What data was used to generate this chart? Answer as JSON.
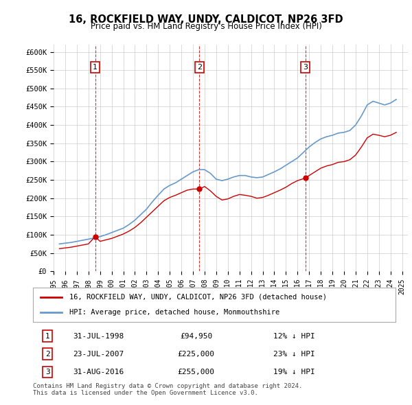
{
  "title": "16, ROCKFIELD WAY, UNDY, CALDICOT, NP26 3FD",
  "subtitle": "Price paid vs. HM Land Registry's House Price Index (HPI)",
  "legend_line1": "16, ROCKFIELD WAY, UNDY, CALDICOT, NP26 3FD (detached house)",
  "legend_line2": "HPI: Average price, detached house, Monmouthshire",
  "copyright": "Contains HM Land Registry data © Crown copyright and database right 2024.\nThis data is licensed under the Open Government Licence v3.0.",
  "purchases": [
    {
      "num": 1,
      "date": "31-JUL-1998",
      "price": 94950,
      "pct": "12%",
      "dir": "↓",
      "x_year": 1998.58
    },
    {
      "num": 2,
      "date": "23-JUL-2007",
      "price": 225000,
      "pct": "23%",
      "dir": "↓",
      "x_year": 2007.56
    },
    {
      "num": 3,
      "date": "31-AUG-2016",
      "price": 255000,
      "pct": "19%",
      "dir": "↓",
      "x_year": 2016.67
    }
  ],
  "ylim": [
    0,
    620000
  ],
  "xlim_start": 1995.0,
  "xlim_end": 2025.5,
  "yticks": [
    0,
    50000,
    100000,
    150000,
    200000,
    250000,
    300000,
    350000,
    400000,
    450000,
    500000,
    550000,
    600000
  ],
  "ytick_labels": [
    "£0",
    "£50K",
    "£100K",
    "£150K",
    "£200K",
    "£250K",
    "£300K",
    "£350K",
    "£400K",
    "£450K",
    "£500K",
    "£550K",
    "£600K"
  ],
  "xticks": [
    1995,
    1996,
    1997,
    1998,
    1999,
    2000,
    2001,
    2002,
    2003,
    2004,
    2005,
    2006,
    2007,
    2008,
    2009,
    2010,
    2011,
    2012,
    2013,
    2014,
    2015,
    2016,
    2017,
    2018,
    2019,
    2020,
    2021,
    2022,
    2023,
    2024,
    2025
  ],
  "hpi_color": "#6699cc",
  "price_color": "#cc0000",
  "vline_color": "#cc0000",
  "marker_color": "#cc0000",
  "grid_color": "#cccccc",
  "bg_color": "#ffffff",
  "hpi_data": {
    "years": [
      1995.5,
      1996.0,
      1996.5,
      1997.0,
      1997.5,
      1998.0,
      1998.5,
      1999.0,
      1999.5,
      2000.0,
      2000.5,
      2001.0,
      2001.5,
      2002.0,
      2002.5,
      2003.0,
      2003.5,
      2004.0,
      2004.5,
      2005.0,
      2005.5,
      2006.0,
      2006.5,
      2007.0,
      2007.5,
      2008.0,
      2008.5,
      2009.0,
      2009.5,
      2010.0,
      2010.5,
      2011.0,
      2011.5,
      2012.0,
      2012.5,
      2013.0,
      2013.5,
      2014.0,
      2014.5,
      2015.0,
      2015.5,
      2016.0,
      2016.5,
      2017.0,
      2017.5,
      2018.0,
      2018.5,
      2019.0,
      2019.5,
      2020.0,
      2020.5,
      2021.0,
      2021.5,
      2022.0,
      2022.5,
      2023.0,
      2023.5,
      2024.0,
      2024.5
    ],
    "values": [
      75000,
      77000,
      79000,
      82000,
      85000,
      88000,
      91000,
      95000,
      100000,
      106000,
      112000,
      118000,
      128000,
      140000,
      155000,
      170000,
      190000,
      208000,
      225000,
      235000,
      242000,
      252000,
      262000,
      272000,
      278000,
      278000,
      268000,
      252000,
      248000,
      252000,
      258000,
      262000,
      262000,
      258000,
      256000,
      258000,
      265000,
      272000,
      280000,
      290000,
      300000,
      310000,
      325000,
      340000,
      352000,
      362000,
      368000,
      372000,
      378000,
      380000,
      385000,
      400000,
      425000,
      455000,
      465000,
      460000,
      455000,
      460000,
      470000
    ]
  },
  "price_data": {
    "years": [
      1995.5,
      1996.0,
      1996.5,
      1997.0,
      1997.5,
      1998.0,
      1998.58,
      1999.0,
      1999.5,
      2000.0,
      2000.5,
      2001.0,
      2001.5,
      2002.0,
      2002.5,
      2003.0,
      2003.5,
      2004.0,
      2004.5,
      2005.0,
      2005.5,
      2006.0,
      2006.5,
      2007.0,
      2007.56,
      2008.0,
      2008.5,
      2009.0,
      2009.5,
      2010.0,
      2010.5,
      2011.0,
      2011.5,
      2012.0,
      2012.5,
      2013.0,
      2013.5,
      2014.0,
      2014.5,
      2015.0,
      2015.5,
      2016.0,
      2016.67,
      2017.0,
      2017.5,
      2018.0,
      2018.5,
      2019.0,
      2019.5,
      2020.0,
      2020.5,
      2021.0,
      2021.5,
      2022.0,
      2022.5,
      2023.0,
      2023.5,
      2024.0,
      2024.5
    ],
    "values": [
      62000,
      64000,
      66000,
      69000,
      72000,
      75000,
      94950,
      82000,
      86000,
      90000,
      96000,
      102000,
      110000,
      120000,
      133000,
      148000,
      163000,
      178000,
      193000,
      202000,
      208000,
      215000,
      222000,
      225000,
      225000,
      232000,
      220000,
      205000,
      195000,
      198000,
      205000,
      210000,
      208000,
      205000,
      200000,
      202000,
      208000,
      215000,
      222000,
      230000,
      240000,
      248000,
      255000,
      262000,
      272000,
      282000,
      288000,
      292000,
      298000,
      300000,
      305000,
      318000,
      340000,
      365000,
      375000,
      372000,
      368000,
      372000,
      380000
    ]
  }
}
